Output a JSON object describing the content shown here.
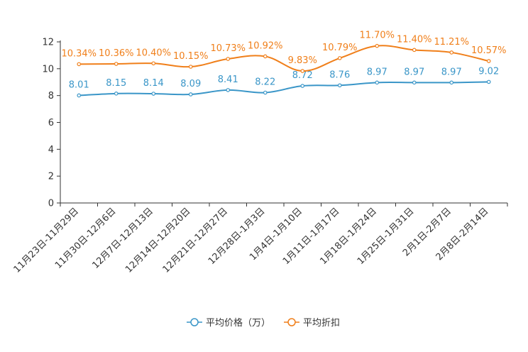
{
  "chart_data": {
    "type": "line",
    "title": "",
    "xlabel": "",
    "ylabel": "",
    "categories": [
      "11月23日-11月29日",
      "11月30日-12月6日",
      "12月7日-12月13日",
      "12月14日-12月20日",
      "12月21日-12月27日",
      "12月28日-1月3日",
      "1月4日-1月10日",
      "1月11日-1月17日",
      "1月18日-1月24日",
      "1月25日-1月31日",
      "2月1日-2月7日",
      "2月8日-2月14日"
    ],
    "ylim": [
      0,
      12
    ],
    "yticks": [
      "0",
      "2",
      "4",
      "6",
      "8",
      "10",
      "12"
    ],
    "grid": false,
    "legend_position": "bottom",
    "series": [
      {
        "name": "平均价格（万）",
        "color": "#3a96c8",
        "values": [
          8.01,
          8.15,
          8.14,
          8.09,
          8.41,
          8.22,
          8.72,
          8.76,
          8.97,
          8.97,
          8.97,
          9.02
        ],
        "labels": [
          "8.01",
          "8.15",
          "8.14",
          "8.09",
          "8.41",
          "8.22",
          "8.72",
          "8.76",
          "8.97",
          "8.97",
          "8.97",
          "9.02"
        ]
      },
      {
        "name": "平均折扣",
        "color": "#f07f1a",
        "values": [
          10.34,
          10.36,
          10.4,
          10.15,
          10.73,
          10.92,
          9.83,
          10.79,
          11.7,
          11.4,
          11.21,
          10.57
        ],
        "labels": [
          "10.34%",
          "10.36%",
          "10.40%",
          "10.15%",
          "10.73%",
          "10.92%",
          "9.83%",
          "10.79%",
          "11.70%",
          "11.40%",
          "11.21%",
          "10.57%"
        ]
      }
    ]
  }
}
